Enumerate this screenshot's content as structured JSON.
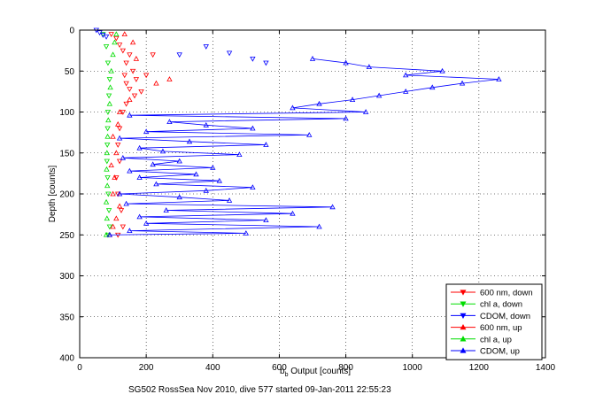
{
  "chart_data": {
    "type": "scatter",
    "xlabel_main": "b",
    "xlabel_sub": "b",
    "xlabel_rest": " Output [counts]",
    "ylabel": "Depth [counts]",
    "caption": "SG502 RossSea Nov 2010, dive 577 started 09-Jan-2011 22:55:23",
    "xlim": [
      0,
      1400
    ],
    "ylim": [
      0,
      400
    ],
    "y_reversed": true,
    "xticks": [
      0,
      200,
      400,
      600,
      800,
      1000,
      1200,
      1400
    ],
    "yticks": [
      0,
      50,
      100,
      150,
      200,
      250,
      300,
      350,
      400
    ],
    "grid": true,
    "legend_position": "bottom-right",
    "series": [
      {
        "name": "600 nm, down",
        "color": "#ff0000",
        "marker": "triangle-down",
        "line": false,
        "points": [
          [
            95,
            5
          ],
          [
            110,
            10
          ],
          [
            120,
            18
          ],
          [
            130,
            25
          ],
          [
            150,
            30
          ],
          [
            140,
            40
          ],
          [
            160,
            50
          ],
          [
            135,
            55
          ],
          [
            170,
            60
          ],
          [
            140,
            65
          ],
          [
            150,
            72
          ],
          [
            165,
            80
          ],
          [
            140,
            90
          ],
          [
            200,
            55
          ],
          [
            220,
            30
          ],
          [
            185,
            75
          ],
          [
            130,
            100
          ],
          [
            120,
            120
          ],
          [
            115,
            140
          ],
          [
            120,
            160
          ],
          [
            110,
            180
          ],
          [
            115,
            200
          ],
          [
            125,
            220
          ],
          [
            130,
            240
          ],
          [
            115,
            250
          ]
        ]
      },
      {
        "name": "chl a, down",
        "color": "#00dd00",
        "marker": "triangle-down",
        "line": false,
        "points": [
          [
            70,
            5
          ],
          [
            80,
            20
          ],
          [
            85,
            40
          ],
          [
            90,
            60
          ],
          [
            88,
            80
          ],
          [
            85,
            100
          ],
          [
            84,
            120
          ],
          [
            83,
            140
          ],
          [
            82,
            160
          ],
          [
            84,
            180
          ],
          [
            86,
            200
          ],
          [
            88,
            220
          ],
          [
            90,
            240
          ],
          [
            85,
            250
          ]
        ]
      },
      {
        "name": "CDOM, down",
        "color": "#0000ff",
        "marker": "triangle-down",
        "line": false,
        "points": [
          [
            50,
            0
          ],
          [
            60,
            3
          ],
          [
            70,
            6
          ],
          [
            80,
            8
          ],
          [
            300,
            30
          ],
          [
            380,
            20
          ],
          [
            450,
            28
          ],
          [
            520,
            35
          ],
          [
            560,
            40
          ]
        ]
      },
      {
        "name": "600 nm, up",
        "color": "#ff0000",
        "marker": "triangle-up",
        "line": false,
        "points": [
          [
            90,
            250
          ],
          [
            100,
            240
          ],
          [
            110,
            230
          ],
          [
            120,
            215
          ],
          [
            100,
            200
          ],
          [
            105,
            180
          ],
          [
            95,
            165
          ],
          [
            110,
            150
          ],
          [
            100,
            130
          ],
          [
            115,
            115
          ],
          [
            120,
            100
          ],
          [
            150,
            85
          ],
          [
            230,
            65
          ],
          [
            270,
            60
          ],
          [
            170,
            35
          ],
          [
            160,
            15
          ],
          [
            135,
            5
          ]
        ]
      },
      {
        "name": "chl a, up",
        "color": "#00dd00",
        "marker": "triangle-up",
        "line": false,
        "points": [
          [
            80,
            250
          ],
          [
            82,
            230
          ],
          [
            80,
            210
          ],
          [
            83,
            190
          ],
          [
            81,
            170
          ],
          [
            82,
            150
          ],
          [
            84,
            130
          ],
          [
            86,
            110
          ],
          [
            90,
            90
          ],
          [
            92,
            70
          ],
          [
            95,
            50
          ],
          [
            100,
            30
          ],
          [
            105,
            15
          ],
          [
            110,
            5
          ]
        ]
      },
      {
        "name": "CDOM, up",
        "color": "#0000ff",
        "marker": "triangle-up",
        "line": true,
        "points": [
          [
            90,
            250
          ],
          [
            500,
            248
          ],
          [
            150,
            245
          ],
          [
            720,
            240
          ],
          [
            200,
            236
          ],
          [
            560,
            232
          ],
          [
            180,
            228
          ],
          [
            640,
            224
          ],
          [
            260,
            220
          ],
          [
            760,
            216
          ],
          [
            140,
            212
          ],
          [
            450,
            208
          ],
          [
            300,
            204
          ],
          [
            120,
            200
          ],
          [
            380,
            196
          ],
          [
            520,
            192
          ],
          [
            230,
            188
          ],
          [
            420,
            184
          ],
          [
            180,
            180
          ],
          [
            350,
            176
          ],
          [
            150,
            172
          ],
          [
            400,
            168
          ],
          [
            220,
            164
          ],
          [
            300,
            160
          ],
          [
            130,
            156
          ],
          [
            480,
            152
          ],
          [
            250,
            148
          ],
          [
            180,
            144
          ],
          [
            560,
            140
          ],
          [
            330,
            136
          ],
          [
            120,
            132
          ],
          [
            690,
            128
          ],
          [
            200,
            124
          ],
          [
            520,
            120
          ],
          [
            380,
            116
          ],
          [
            270,
            112
          ],
          [
            800,
            108
          ],
          [
            150,
            104
          ],
          [
            860,
            100
          ],
          [
            640,
            95
          ],
          [
            720,
            90
          ],
          [
            820,
            85
          ],
          [
            900,
            80
          ],
          [
            980,
            75
          ],
          [
            1060,
            70
          ],
          [
            1150,
            65
          ],
          [
            1260,
            60
          ],
          [
            980,
            55
          ],
          [
            1090,
            50
          ],
          [
            870,
            45
          ],
          [
            800,
            40
          ],
          [
            700,
            35
          ]
        ]
      }
    ]
  }
}
